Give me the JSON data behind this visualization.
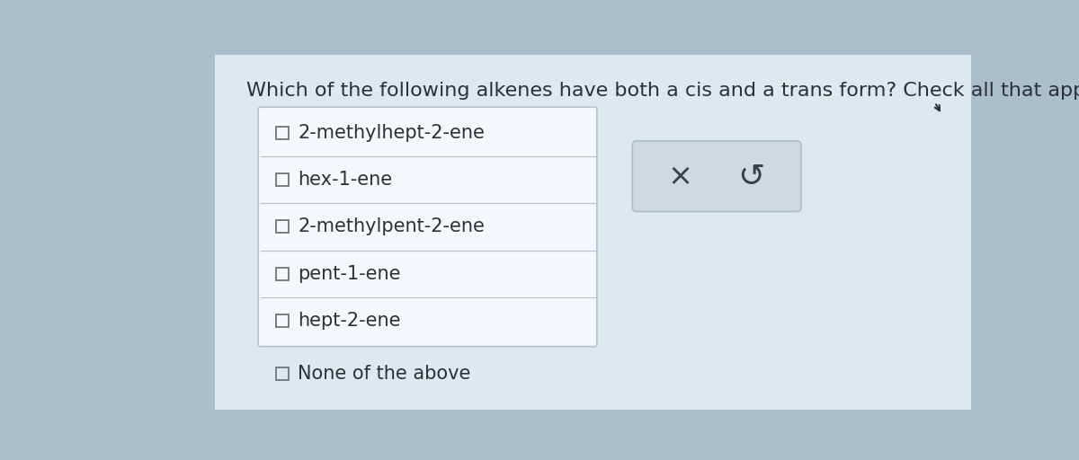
{
  "title": "Which of the following alkenes have both a cis and a trans form? Check all that apply.",
  "options": [
    "2-methylhept-2-ene",
    "hex-1-ene",
    "2-methylpent-2-ene",
    "pent-1-ene",
    "hept-2-ene"
  ],
  "last_option": "None of the above",
  "bg_outer": "#aabfce",
  "bg_panel": "#dde8ef",
  "box_bg": "#f5f8fa",
  "box_border": "#b8c4cc",
  "title_color": "#2c3038",
  "option_color": "#2c3038",
  "checkbox_border": "#6a7580",
  "checkbox_bg": "#f5f8fa",
  "side_bg": "#cfd9e0",
  "side_border": "#b0bcc4",
  "x_color": "#3a4048",
  "undo_color": "#3a4048",
  "title_fontsize": 16,
  "option_fontsize": 15,
  "cursor_color": "#2c3038"
}
